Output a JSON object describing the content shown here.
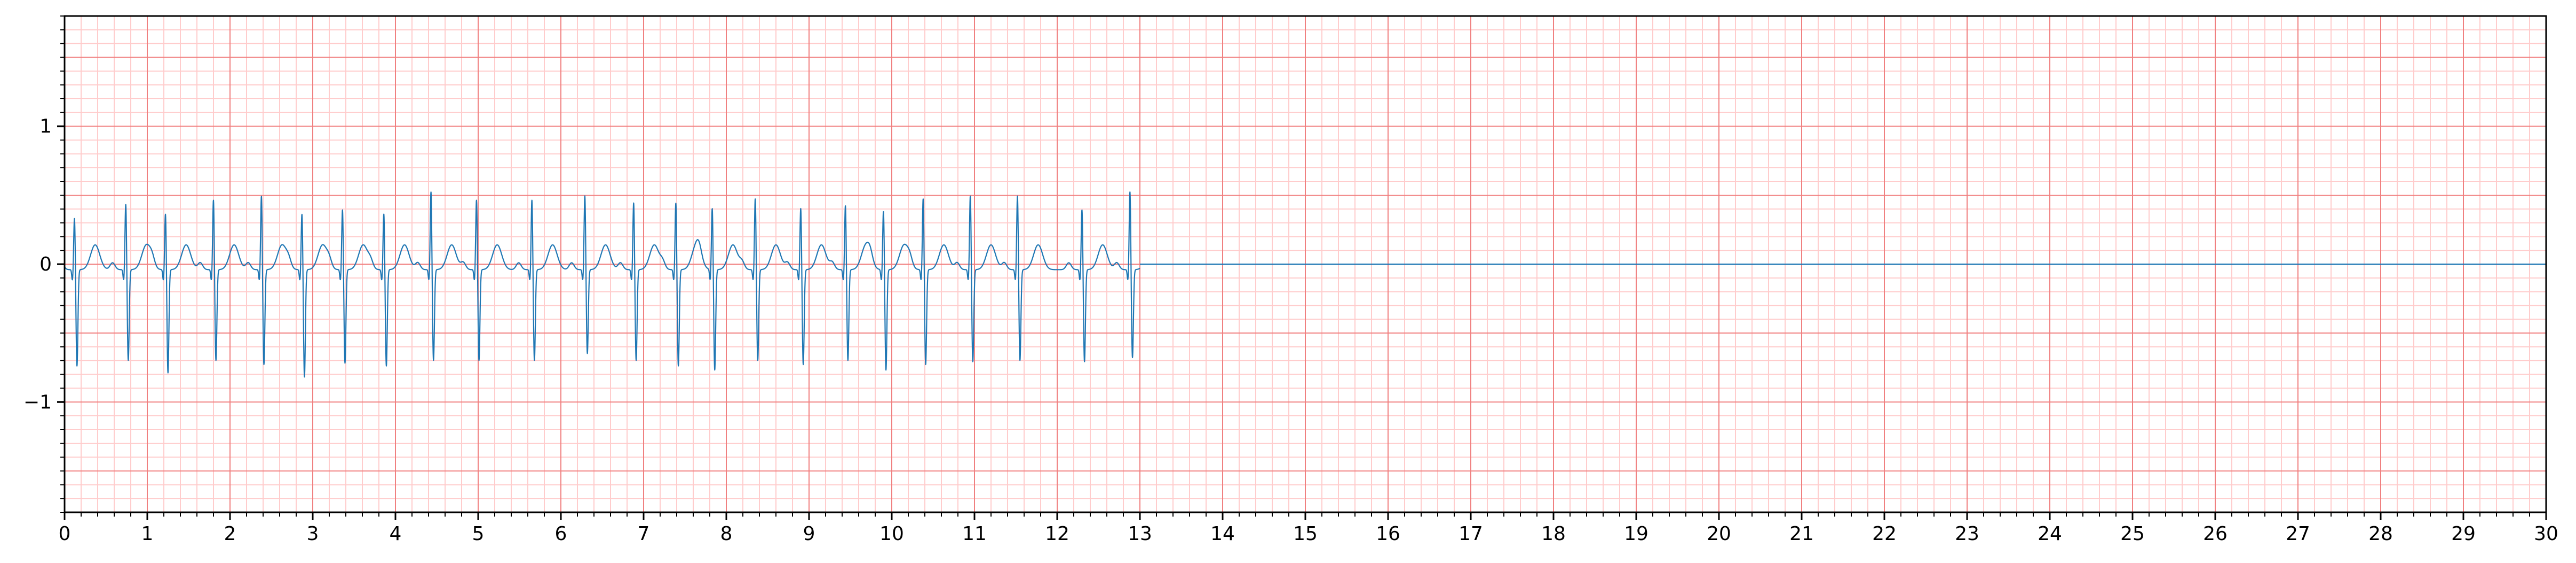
{
  "chart_data": {
    "type": "line",
    "title": "",
    "xlabel": "",
    "ylabel": "",
    "xlim": [
      0,
      30
    ],
    "ylim": [
      -1.8,
      1.8
    ],
    "x_ticks": [
      0,
      1,
      2,
      3,
      4,
      5,
      6,
      7,
      8,
      9,
      10,
      11,
      12,
      13,
      14,
      15,
      16,
      17,
      18,
      19,
      20,
      21,
      22,
      23,
      24,
      25,
      26,
      27,
      28,
      29,
      30
    ],
    "x_tick_labels": [
      "0",
      "1",
      "2",
      "3",
      "4",
      "5",
      "6",
      "7",
      "8",
      "9",
      "10",
      "11",
      "12",
      "13",
      "14",
      "15",
      "16",
      "17",
      "18",
      "19",
      "20",
      "21",
      "22",
      "23",
      "24",
      "25",
      "26",
      "27",
      "28",
      "29",
      "30"
    ],
    "y_ticks": [
      -1,
      0,
      1
    ],
    "y_tick_labels": [
      "−1",
      "0",
      "1"
    ],
    "grid": true,
    "grid_major_x": 1,
    "grid_minor_x": 0.2,
    "grid_major_y": 0.5,
    "grid_minor_y": 0.1,
    "grid_colors": {
      "major": "#f08080",
      "minor": "#ffcccc"
    },
    "series": [
      {
        "color": "#1f77b4",
        "signal_end": 13.0,
        "flat_value": 0.0,
        "beats": [
          {
            "t": 0.12,
            "r": 0.35,
            "s": -0.74
          },
          {
            "t": 0.74,
            "r": 0.45,
            "s": -0.7
          },
          {
            "t": 1.22,
            "r": 0.38,
            "s": -0.79
          },
          {
            "t": 1.8,
            "r": 0.48,
            "s": -0.7
          },
          {
            "t": 2.38,
            "r": 0.51,
            "s": -0.73
          },
          {
            "t": 2.87,
            "r": 0.38,
            "s": -0.82
          },
          {
            "t": 3.36,
            "r": 0.41,
            "s": -0.72
          },
          {
            "t": 3.86,
            "r": 0.38,
            "s": -0.74
          },
          {
            "t": 4.43,
            "r": 0.54,
            "s": -0.7
          },
          {
            "t": 4.98,
            "r": 0.48,
            "s": -0.7
          },
          {
            "t": 5.65,
            "r": 0.48,
            "s": -0.7
          },
          {
            "t": 6.29,
            "r": 0.51,
            "s": -0.65
          },
          {
            "t": 6.88,
            "r": 0.46,
            "s": -0.7
          },
          {
            "t": 7.39,
            "r": 0.46,
            "s": -0.74
          },
          {
            "t": 7.83,
            "r": 0.42,
            "s": -0.77
          },
          {
            "t": 8.35,
            "r": 0.49,
            "s": -0.7
          },
          {
            "t": 8.9,
            "r": 0.42,
            "s": -0.73
          },
          {
            "t": 9.44,
            "r": 0.44,
            "s": -0.7
          },
          {
            "t": 9.9,
            "r": 0.4,
            "s": -0.77
          },
          {
            "t": 10.38,
            "r": 0.49,
            "s": -0.73
          },
          {
            "t": 10.95,
            "r": 0.51,
            "s": -0.71
          },
          {
            "t": 11.52,
            "r": 0.51,
            "s": -0.7
          },
          {
            "t": 12.3,
            "r": 0.41,
            "s": -0.71
          },
          {
            "t": 12.88,
            "r": 0.54,
            "s": -0.68
          }
        ]
      }
    ]
  }
}
